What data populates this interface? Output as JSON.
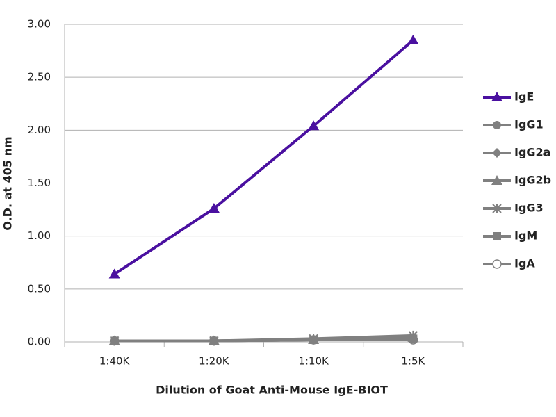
{
  "chart_data": {
    "type": "line",
    "x_label": "Dilution of Goat Anti-Mouse IgE-BIOT",
    "y_label": "O.D. at 405 nm",
    "categories": [
      "1:40K",
      "1:20K",
      "1:10K",
      "1:5K"
    ],
    "series": [
      {
        "name": "IgE",
        "color": "#4a10a0",
        "marker": "triangle",
        "values": [
          0.64,
          1.26,
          2.04,
          2.85
        ]
      },
      {
        "name": "IgG1",
        "color": "#808080",
        "marker": "circle",
        "values": [
          0.01,
          0.01,
          0.02,
          0.04
        ]
      },
      {
        "name": "IgG2a",
        "color": "#808080",
        "marker": "diamond",
        "values": [
          0.01,
          0.01,
          0.02,
          0.03
        ]
      },
      {
        "name": "IgG2b",
        "color": "#808080",
        "marker": "triangle",
        "values": [
          0.01,
          0.01,
          0.02,
          0.04
        ]
      },
      {
        "name": "IgG3",
        "color": "#808080",
        "marker": "asterisk",
        "values": [
          0.01,
          0.01,
          0.03,
          0.06
        ]
      },
      {
        "name": "IgM",
        "color": "#808080",
        "marker": "square",
        "values": [
          0.01,
          0.01,
          0.02,
          0.03
        ]
      },
      {
        "name": "IgA",
        "color": "#808080",
        "marker": "open-circle",
        "values": [
          0.01,
          0.01,
          0.02,
          0.02
        ]
      }
    ],
    "ylim": [
      0,
      3
    ],
    "yticks": [
      {
        "value": 0,
        "label": "0.00"
      },
      {
        "value": 0.5,
        "label": "0.50"
      },
      {
        "value": 1,
        "label": "1.00"
      },
      {
        "value": 1.5,
        "label": "1.50"
      },
      {
        "value": 2,
        "label": "2.00"
      },
      {
        "value": 2.5,
        "label": "2.50"
      },
      {
        "value": 3,
        "label": "3.00"
      }
    ],
    "grid": true,
    "legend": "right"
  }
}
